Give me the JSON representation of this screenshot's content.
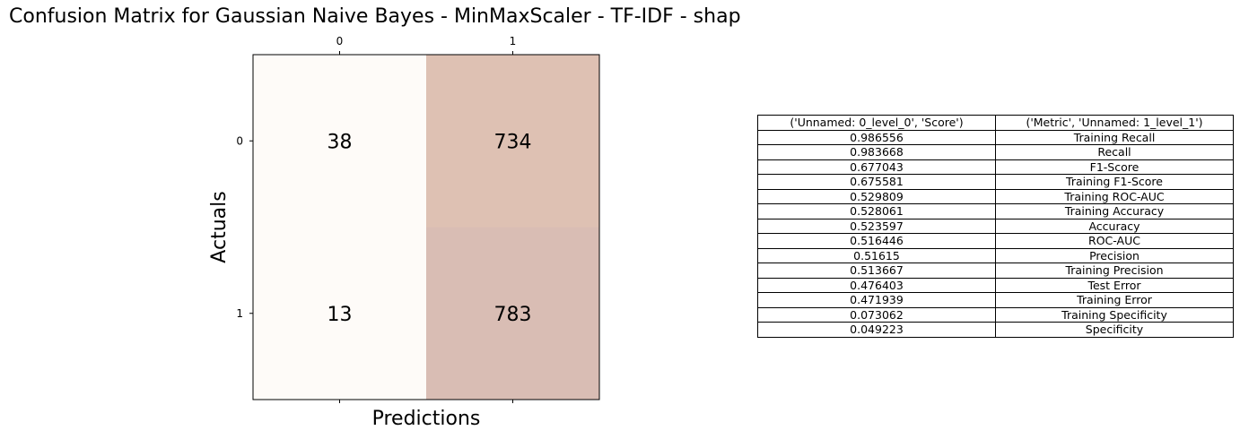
{
  "title": "Confusion Matrix for Gaussian Naive Bayes - MinMaxScaler - TF-IDF - shap",
  "chart_data": [
    {
      "type": "heatmap",
      "title": "Confusion Matrix for Gaussian Naive Bayes - MinMaxScaler - TF-IDF - shap",
      "xlabel": "Predictions",
      "ylabel": "Actuals",
      "x_categories": [
        "0",
        "1"
      ],
      "y_categories": [
        "0",
        "1"
      ],
      "x_ticks_position": "top",
      "values": [
        [
          38,
          734
        ],
        [
          13,
          783
        ]
      ],
      "colors": [
        [
          "#fefbf8",
          "#dec1b3"
        ],
        [
          "#fefbf8",
          "#d9bdb4"
        ]
      ],
      "grid": false,
      "legend": "none"
    },
    {
      "type": "table",
      "columns": [
        "('Unnamed: 0_level_0', 'Score')",
        "('Metric', 'Unnamed: 1_level_1')"
      ],
      "rows": [
        [
          "0.986556",
          "Training Recall"
        ],
        [
          "0.983668",
          "Recall"
        ],
        [
          "0.677043",
          "F1-Score"
        ],
        [
          "0.675581",
          "Training F1-Score"
        ],
        [
          "0.529809",
          "Training ROC-AUC"
        ],
        [
          "0.528061",
          "Training Accuracy"
        ],
        [
          "0.523597",
          "Accuracy"
        ],
        [
          "0.516446",
          "ROC-AUC"
        ],
        [
          "0.51615",
          "Precision"
        ],
        [
          "0.513667",
          "Training Precision"
        ],
        [
          "0.476403",
          "Test Error"
        ],
        [
          "0.471939",
          "Training Error"
        ],
        [
          "0.073062",
          "Training Specificity"
        ],
        [
          "0.049223",
          "Specificity"
        ]
      ]
    }
  ]
}
